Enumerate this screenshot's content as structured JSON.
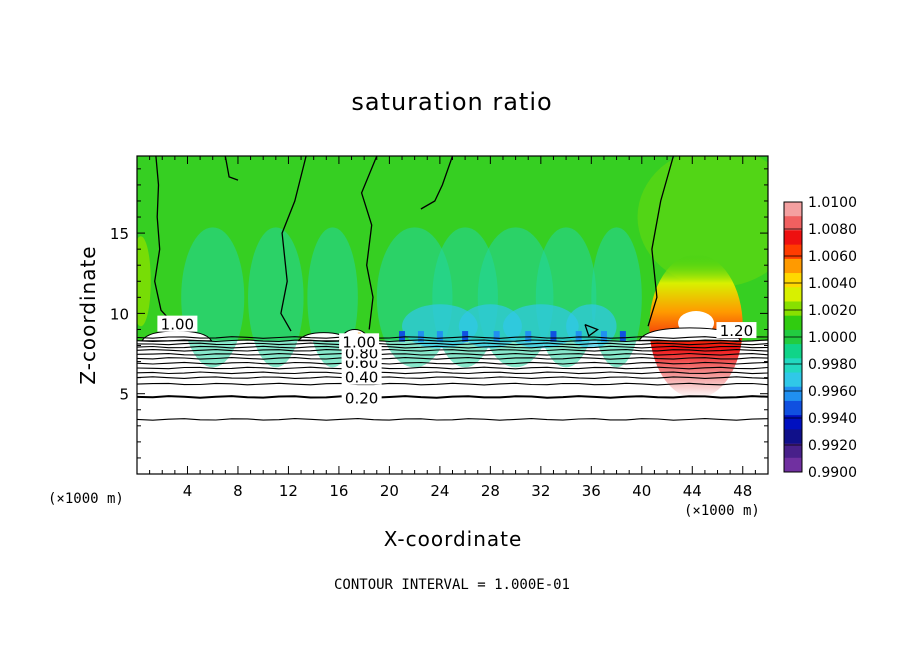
{
  "chart_data": {
    "type": "heatmap",
    "title": "saturation ratio",
    "xlabel": "X-coordinate",
    "ylabel": "Z-coordinate",
    "x_unit_left": "(×1000 m)",
    "x_unit_right": "(×1000 m)",
    "footer": "CONTOUR INTERVAL = 1.000E-01",
    "xlim": [
      0,
      50
    ],
    "ylim": [
      0,
      19.8
    ],
    "x_ticks": [
      4,
      8,
      12,
      16,
      20,
      24,
      28,
      32,
      36,
      40,
      44,
      48
    ],
    "y_ticks": [
      5,
      10,
      15
    ],
    "colorbar": {
      "ticks": [
        "1.0100",
        "1.0080",
        "1.0060",
        "1.0040",
        "1.0020",
        "1.0000",
        "0.9980",
        "0.9960",
        "0.9940",
        "0.9920",
        "0.9900"
      ],
      "colors": [
        "#f4a0a0",
        "#f06060",
        "#ee1010",
        "#ff3c00",
        "#ff9a00",
        "#ffd800",
        "#d8f000",
        "#88e000",
        "#30cc10",
        "#22cc40",
        "#10d488",
        "#22d8c0",
        "#30c8e8",
        "#2090f0",
        "#1050e0",
        "#0010c0",
        "#10108a",
        "#48208a",
        "#7030a0"
      ]
    },
    "contour_labels": [
      {
        "text": "0.20",
        "x": 17.8,
        "y": 4.7
      },
      {
        "text": "0.40",
        "x": 17.8,
        "y": 6.0
      },
      {
        "text": "0.60",
        "x": 17.8,
        "y": 6.9
      },
      {
        "text": "0.80",
        "x": 17.8,
        "y": 7.5
      },
      {
        "text": "1.00",
        "x": 17.6,
        "y": 8.2
      },
      {
        "text": "1.20",
        "x": 47.5,
        "y": 8.9
      },
      {
        "text": "1.00",
        "x": 3.2,
        "y": 9.3
      }
    ],
    "contour_levels_below": [
      0.2,
      0.4,
      0.6,
      0.8,
      1.0
    ],
    "approx_contour_heights": [
      3.4,
      4.8,
      5.6,
      6.0,
      6.3,
      6.6,
      6.9,
      7.2,
      7.45,
      7.7,
      7.9,
      8.1,
      8.3,
      8.5
    ]
  }
}
